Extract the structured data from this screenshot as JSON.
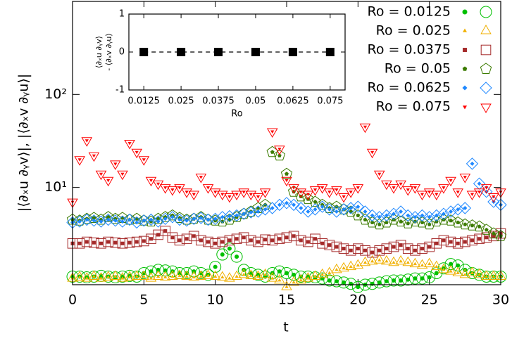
{
  "chart_data": [
    {
      "type": "scatter",
      "x_label": "t",
      "y_label": "|⟨∂ₓu ∂ᵧv⟩|, |⟨∂ₓv ∂ᵧu⟩|",
      "xlim": [
        0,
        30
      ],
      "xticks": [
        0,
        5,
        10,
        15,
        20,
        25,
        30
      ],
      "ylim": [
        0.9,
        1000
      ],
      "log_y": true,
      "yticks": [
        {
          "value": 10,
          "label": "10¹"
        },
        {
          "value": 100,
          "label": "10²"
        }
      ],
      "legend": "upper right",
      "x": [
        0,
        0.5,
        1,
        1.5,
        2,
        2.5,
        3,
        3.5,
        4,
        4.5,
        5,
        5.5,
        6,
        6.5,
        7,
        7.5,
        8,
        8.5,
        9,
        9.5,
        10,
        10.5,
        11,
        11.5,
        12,
        12.5,
        13,
        13.5,
        14,
        14.5,
        15,
        15.5,
        16,
        16.5,
        17,
        17.5,
        18,
        18.5,
        19,
        19.5,
        20,
        20.5,
        21,
        21.5,
        22,
        22.5,
        23,
        23.5,
        24,
        24.5,
        25,
        25.5,
        26,
        26.5,
        27,
        27.5,
        28,
        28.5,
        29,
        29.5,
        30
      ],
      "series": [
        {
          "name": "Ro = 0.0125",
          "color": "#00c000",
          "marker": "circle",
          "values": [
            1.1,
            1.1,
            1.08,
            1.1,
            1.12,
            1.1,
            1.08,
            1.1,
            1.12,
            1.1,
            1.2,
            1.25,
            1.3,
            1.28,
            1.25,
            1.2,
            1.2,
            1.25,
            1.2,
            1.15,
            1.4,
            1.9,
            2.2,
            1.8,
            1.3,
            1.2,
            1.15,
            1.1,
            1.2,
            1.25,
            1.2,
            1.15,
            1.1,
            1.1,
            1.08,
            1.05,
            1.0,
            0.98,
            0.95,
            0.92,
            0.85,
            0.9,
            0.92,
            0.95,
            0.98,
            1.0,
            1.0,
            1.02,
            1.05,
            1.05,
            1.08,
            1.2,
            1.35,
            1.5,
            1.45,
            1.3,
            1.2,
            1.15,
            1.1,
            1.1,
            1.1
          ]
        },
        {
          "name": "Ro = 0.025",
          "color": "#f0b000",
          "marker": "triangle",
          "values": [
            1.05,
            1.08,
            1.05,
            1.1,
            1.05,
            1.08,
            1.1,
            1.05,
            1.08,
            1.1,
            1.1,
            1.05,
            1.1,
            1.08,
            1.1,
            1.12,
            1.1,
            1.08,
            1.1,
            1.12,
            1.1,
            1.08,
            1.05,
            1.1,
            1.15,
            1.12,
            1.1,
            1.15,
            1.05,
            1.0,
            0.85,
            0.95,
            1.0,
            1.05,
            1.1,
            1.15,
            1.2,
            1.3,
            1.35,
            1.4,
            1.45,
            1.55,
            1.6,
            1.65,
            1.6,
            1.55,
            1.6,
            1.55,
            1.5,
            1.45,
            1.5,
            1.4,
            1.3,
            1.25,
            1.2,
            1.15,
            1.2,
            1.15,
            1.1,
            1.1,
            1.1
          ]
        },
        {
          "name": "Ro = 0.0375",
          "color": "#a52a2a",
          "marker": "square",
          "values": [
            2.5,
            2.5,
            2.6,
            2.55,
            2.5,
            2.6,
            2.55,
            2.5,
            2.55,
            2.6,
            2.65,
            2.8,
            3.1,
            3.4,
            2.9,
            2.7,
            2.8,
            3.0,
            2.7,
            2.6,
            2.5,
            2.6,
            2.7,
            2.8,
            2.9,
            2.7,
            2.6,
            2.75,
            2.7,
            2.8,
            2.9,
            3.0,
            2.7,
            2.6,
            2.8,
            2.5,
            2.4,
            2.3,
            2.2,
            2.1,
            2.2,
            2.1,
            2.0,
            2.1,
            2.2,
            2.3,
            2.4,
            2.2,
            2.1,
            2.2,
            2.3,
            2.5,
            2.7,
            2.6,
            2.5,
            2.6,
            2.7,
            2.8,
            2.9,
            3.0,
            3.2
          ]
        },
        {
          "name": "Ro = 0.05",
          "color": "#3b7b00",
          "marker": "pentagon",
          "values": [
            4.5,
            4.4,
            4.6,
            4.7,
            4.5,
            4.8,
            4.6,
            4.7,
            4.5,
            4.6,
            4.4,
            4.3,
            4.6,
            4.8,
            5.0,
            4.7,
            4.5,
            4.6,
            4.8,
            4.5,
            4.4,
            4.3,
            4.5,
            4.8,
            5.2,
            5.5,
            6.0,
            6.5,
            24,
            22,
            14,
            9,
            8,
            7.5,
            7,
            6.5,
            6,
            6.2,
            5.8,
            5.5,
            5.0,
            4.5,
            4.2,
            4.0,
            4.2,
            4.5,
            4.3,
            4.1,
            4.3,
            4.2,
            4.0,
            4.3,
            4.5,
            4.4,
            4.2,
            4.0,
            3.9,
            3.8,
            3.5,
            3.2,
            3.0
          ]
        },
        {
          "name": "Ro = 0.0625",
          "color": "#1e88ff",
          "marker": "diamond",
          "values": [
            4.2,
            4.3,
            4.5,
            4.4,
            4.3,
            4.5,
            4.4,
            4.3,
            4.5,
            4.2,
            4.4,
            4.5,
            4.3,
            4.6,
            4.8,
            4.5,
            4.4,
            4.6,
            4.7,
            4.5,
            4.6,
            4.8,
            4.9,
            5.0,
            5.2,
            5.4,
            5.5,
            5.8,
            6.0,
            6.5,
            6.8,
            6.5,
            6.0,
            5.5,
            5.8,
            6.2,
            5.8,
            5.5,
            5.8,
            6.0,
            6.2,
            5.5,
            5.0,
            4.8,
            5.0,
            5.2,
            5.5,
            5.0,
            4.8,
            5.0,
            4.8,
            5.0,
            5.2,
            5.5,
            5.8,
            6.0,
            18,
            11,
            9,
            7,
            6.5
          ]
        },
        {
          "name": "Ro = 0.075",
          "color": "#ff0000",
          "marker": "tridown",
          "values": [
            7,
            20,
            32,
            22,
            14,
            12,
            18,
            14,
            30,
            24,
            20,
            12,
            11,
            10,
            9.5,
            10,
            9,
            8.5,
            13,
            10,
            9,
            8.5,
            8,
            8.5,
            9,
            8.5,
            8,
            9,
            40,
            26,
            12,
            10,
            9,
            8.5,
            9.5,
            10,
            9,
            9.5,
            8,
            9,
            10,
            45,
            24,
            14,
            11,
            10,
            11,
            9.5,
            10,
            8.5,
            9,
            8.5,
            10,
            12,
            9,
            13,
            8.5,
            9,
            10,
            8,
            9
          ]
        }
      ]
    },
    {
      "type": "scatter",
      "x_label": "Ro",
      "y_label": [
        "⟨∂ₓu ∂ᵧv⟩",
        "- ⟨∂ₓv ∂ᵧu⟩"
      ],
      "xlim": [
        0.0075,
        0.08
      ],
      "xticks": [
        0.0125,
        0.025,
        0.0375,
        0.05,
        0.0625,
        0.075
      ],
      "ylim": [
        -1,
        1
      ],
      "yticks": [
        -1,
        0,
        1
      ],
      "x": [
        0.0125,
        0.025,
        0.0375,
        0.05,
        0.0625,
        0.075
      ],
      "values": [
        0,
        0,
        0,
        0,
        0,
        0
      ],
      "color": "#000000"
    }
  ]
}
